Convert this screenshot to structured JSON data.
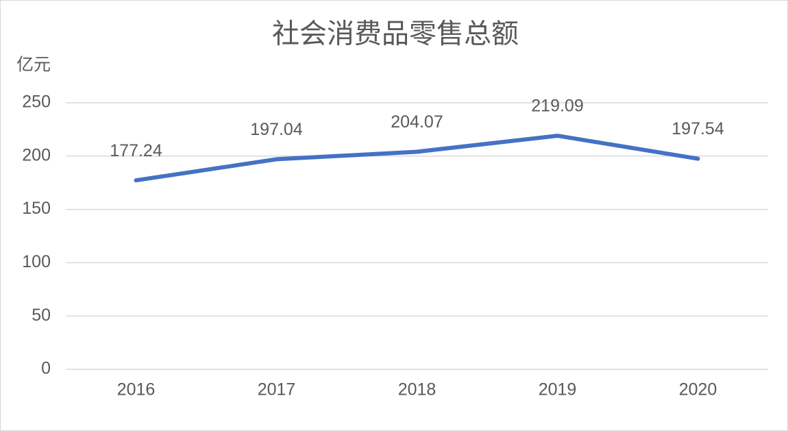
{
  "chart_data": {
    "type": "line",
    "title": "社会消费品零售总额",
    "y_label": "亿元",
    "categories": [
      "2016",
      "2017",
      "2018",
      "2019",
      "2020"
    ],
    "values": [
      177.24,
      197.04,
      204.07,
      219.09,
      197.54
    ],
    "color": "#4472c4",
    "ylim": [
      0,
      250
    ],
    "yticks": [
      0,
      50,
      100,
      150,
      200,
      250
    ],
    "grid": true,
    "data_labels": true
  }
}
